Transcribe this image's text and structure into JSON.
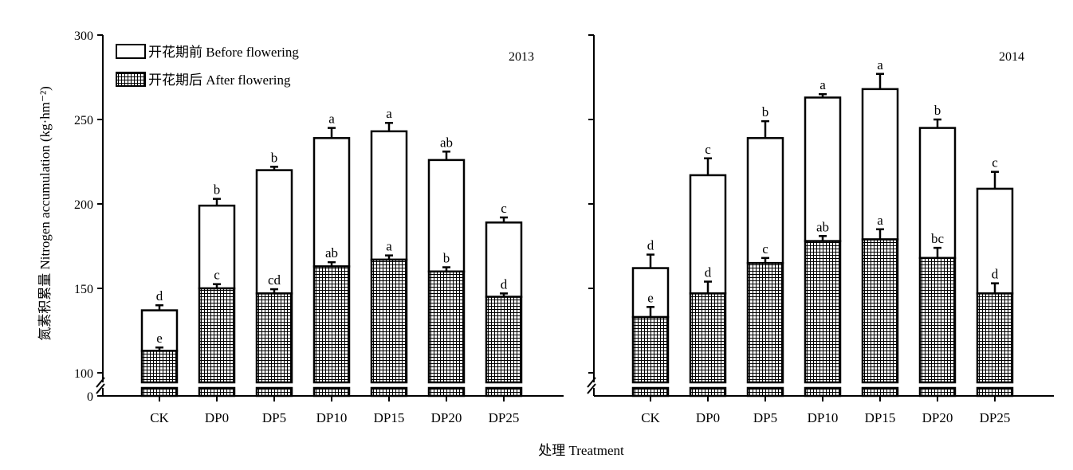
{
  "ylabel": "氮素积累量 Nitrogen accumulation (kg·hm⁻²)",
  "xlabel": "处理 Treatment",
  "legend": {
    "before_label": "开花期前 Before flowering",
    "after_label": "开花期后 After flowering"
  },
  "chart_data": [
    {
      "type": "bar",
      "stacked": true,
      "year_label": "2013",
      "categories": [
        "CK",
        "DP0",
        "DP5",
        "DP10",
        "DP15",
        "DP20",
        "DP25"
      ],
      "ylim": [
        100,
        300
      ],
      "yticks": [
        100,
        150,
        200,
        250,
        300
      ],
      "axis_break": true,
      "break_label": "0",
      "series": [
        {
          "name": "开花期后 After flowering",
          "pattern": "grid",
          "values": [
            113,
            150,
            147,
            163,
            167,
            160,
            145
          ],
          "error": [
            2,
            2.5,
            2.5,
            2.5,
            2.5,
            2.5,
            2
          ],
          "letters": [
            "e",
            "c",
            "cd",
            "ab",
            "a",
            "b",
            "d"
          ]
        },
        {
          "name": "开花期前 Before flowering",
          "pattern": "none",
          "totals": [
            137,
            199,
            220,
            239,
            243,
            226,
            189
          ],
          "error": [
            3,
            4,
            2,
            6,
            5,
            5,
            3
          ],
          "letters": [
            "d",
            "b",
            "b",
            "a",
            "a",
            "ab",
            "c"
          ]
        }
      ]
    },
    {
      "type": "bar",
      "stacked": true,
      "year_label": "2014",
      "categories": [
        "CK",
        "DP0",
        "DP5",
        "DP10",
        "DP15",
        "DP20",
        "DP25"
      ],
      "ylim": [
        100,
        300
      ],
      "yticks": [
        100,
        150,
        200,
        250,
        300
      ],
      "axis_break": true,
      "series": [
        {
          "name": "开花期后 After flowering",
          "pattern": "grid",
          "values": [
            133,
            147,
            165,
            178,
            179,
            168,
            147
          ],
          "error": [
            6,
            7,
            3,
            3,
            6,
            6,
            6
          ],
          "letters": [
            "e",
            "d",
            "c",
            "ab",
            "a",
            "bc",
            "d"
          ]
        },
        {
          "name": "开花期前 Before flowering",
          "pattern": "none",
          "totals": [
            162,
            217,
            239,
            263,
            268,
            245,
            209
          ],
          "error": [
            8,
            10,
            10,
            2,
            9,
            5,
            10
          ],
          "letters": [
            "d",
            "c",
            "b",
            "a",
            "a",
            "b",
            "c"
          ]
        }
      ]
    }
  ]
}
